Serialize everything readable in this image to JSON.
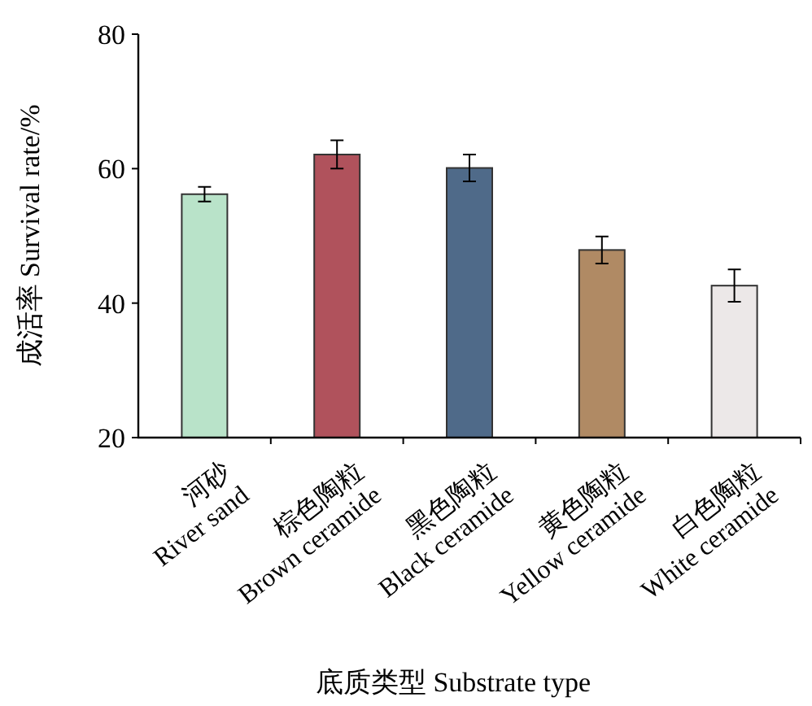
{
  "chart_data": {
    "type": "bar",
    "xlabel": "底质类型 Substrate type",
    "ylabel": "成活率 Survival rate/%",
    "categories": [
      "河砂\nRiver sand",
      "棕色陶粒\nBrown ceramide",
      "黑色陶粒\nBlack ceramide",
      "黄色陶粒\nYellow ceramide",
      "白色陶粒\nWhite ceramide"
    ],
    "values": [
      56.2,
      62.1,
      60.1,
      47.9,
      42.6
    ],
    "errors": [
      1.1,
      2.1,
      2.0,
      2.0,
      2.4
    ],
    "colors": [
      "#b9e3c9",
      "#b0525c",
      "#4f6a89",
      "#b08a64",
      "#ece8e8"
    ],
    "ylim": [
      20,
      80
    ],
    "yticks": [
      20,
      40,
      60,
      80
    ]
  }
}
